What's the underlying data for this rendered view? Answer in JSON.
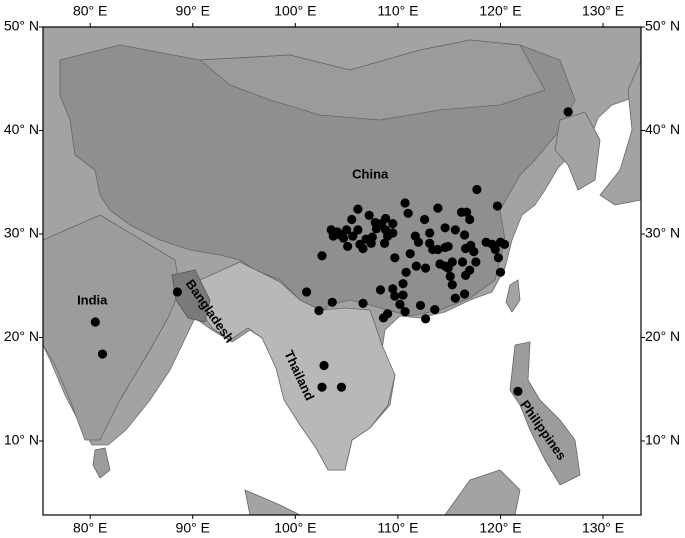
{
  "map": {
    "xlim": [
      75.4,
      133.7
    ],
    "ylim": [
      2.85,
      50
    ],
    "x_ticks": [
      {
        "value": 80,
        "label": "80° E"
      },
      {
        "value": 90,
        "label": "90° E"
      },
      {
        "value": 100,
        "label": "100° E"
      },
      {
        "value": 110,
        "label": "110° E"
      },
      {
        "value": 120,
        "label": "120° E"
      },
      {
        "value": 130,
        "label": "130° E"
      }
    ],
    "y_ticks": [
      {
        "value": 10,
        "label": "10° N"
      },
      {
        "value": 20,
        "label": "20° N"
      },
      {
        "value": 30,
        "label": "30° N"
      },
      {
        "value": 40,
        "label": "40° N"
      },
      {
        "value": 50,
        "label": "50° N"
      }
    ],
    "labels": [
      {
        "text": "China",
        "lon": 107.3,
        "lat": 35.7,
        "rotate": 0
      },
      {
        "text": "India",
        "lon": 80.2,
        "lat": 23.5,
        "rotate": 0
      },
      {
        "text": "Bangladesh",
        "lon": 91.6,
        "lat": 22.5,
        "rotate": 55
      },
      {
        "text": "Thailand",
        "lon": 100.3,
        "lat": 16.3,
        "rotate": 65
      },
      {
        "text": "Philippines",
        "lon": 124.1,
        "lat": 11.0,
        "rotate": 55
      }
    ],
    "points": [
      [
        126.6,
        41.8
      ],
      [
        88.5,
        24.4
      ],
      [
        80.5,
        21.5
      ],
      [
        81.2,
        18.4
      ],
      [
        102.8,
        17.3
      ],
      [
        102.6,
        15.2
      ],
      [
        104.5,
        15.2
      ],
      [
        121.7,
        14.8
      ],
      [
        101.1,
        24.4
      ],
      [
        103.6,
        23.4
      ],
      [
        102.3,
        22.6
      ],
      [
        102.6,
        27.9
      ],
      [
        106.1,
        32.4
      ],
      [
        107.2,
        31.8
      ],
      [
        107.8,
        31.1
      ],
      [
        108.8,
        31.5
      ],
      [
        109.5,
        31.0
      ],
      [
        105.5,
        31.4
      ],
      [
        105.0,
        30.4
      ],
      [
        104.7,
        29.6
      ],
      [
        104.1,
        30.2
      ],
      [
        103.5,
        30.4
      ],
      [
        103.7,
        29.8
      ],
      [
        104.4,
        29.9
      ],
      [
        105.6,
        29.8
      ],
      [
        106.1,
        30.4
      ],
      [
        106.3,
        29.0
      ],
      [
        106.9,
        29.5
      ],
      [
        107.5,
        29.7
      ],
      [
        107.9,
        30.5
      ],
      [
        108.4,
        31.0
      ],
      [
        108.8,
        30.4
      ],
      [
        109.0,
        29.8
      ],
      [
        109.5,
        30.1
      ],
      [
        108.7,
        29.1
      ],
      [
        107.4,
        29.1
      ],
      [
        105.1,
        28.8
      ],
      [
        106.6,
        28.6
      ],
      [
        110.7,
        33.0
      ],
      [
        111.0,
        32.0
      ],
      [
        112.6,
        31.4
      ],
      [
        113.9,
        32.5
      ],
      [
        114.6,
        30.6
      ],
      [
        113.1,
        30.1
      ],
      [
        112.0,
        29.2
      ],
      [
        111.2,
        28.1
      ],
      [
        111.7,
        29.8
      ],
      [
        113.1,
        29.1
      ],
      [
        113.9,
        28.5
      ],
      [
        114.6,
        28.7
      ],
      [
        115.6,
        30.4
      ],
      [
        116.2,
        32.1
      ],
      [
        116.7,
        32.1
      ],
      [
        117.7,
        34.3
      ],
      [
        117.0,
        31.4
      ],
      [
        116.5,
        29.9
      ],
      [
        116.6,
        28.6
      ],
      [
        116.3,
        27.3
      ],
      [
        115.3,
        27.3
      ],
      [
        114.6,
        26.9
      ],
      [
        114.1,
        27.1
      ],
      [
        112.7,
        26.7
      ],
      [
        113.4,
        28.5
      ],
      [
        111.8,
        26.9
      ],
      [
        109.7,
        27.7
      ],
      [
        108.3,
        24.6
      ],
      [
        109.5,
        24.7
      ],
      [
        110.5,
        25.2
      ],
      [
        110.5,
        24.1
      ],
      [
        109.7,
        24.0
      ],
      [
        110.2,
        23.2
      ],
      [
        110.8,
        26.3
      ],
      [
        110.7,
        22.5
      ],
      [
        109.0,
        22.3
      ],
      [
        108.6,
        21.9
      ],
      [
        106.6,
        23.3
      ],
      [
        112.2,
        23.1
      ],
      [
        113.6,
        22.7
      ],
      [
        112.7,
        21.8
      ],
      [
        114.9,
        26.7
      ],
      [
        115.1,
        25.9
      ],
      [
        115.3,
        25.1
      ],
      [
        115.6,
        23.8
      ],
      [
        116.5,
        24.2
      ],
      [
        116.6,
        26.0
      ],
      [
        117.6,
        27.3
      ],
      [
        118.6,
        29.2
      ],
      [
        119.2,
        29.0
      ],
      [
        119.5,
        28.5
      ],
      [
        120.0,
        29.2
      ],
      [
        120.4,
        29.0
      ],
      [
        119.8,
        27.7
      ],
      [
        120.0,
        26.3
      ],
      [
        119.7,
        32.7
      ],
      [
        117.1,
        28.9
      ],
      [
        117.4,
        28.3
      ],
      [
        117.0,
        26.5
      ],
      [
        114.9,
        28.8
      ]
    ]
  }
}
